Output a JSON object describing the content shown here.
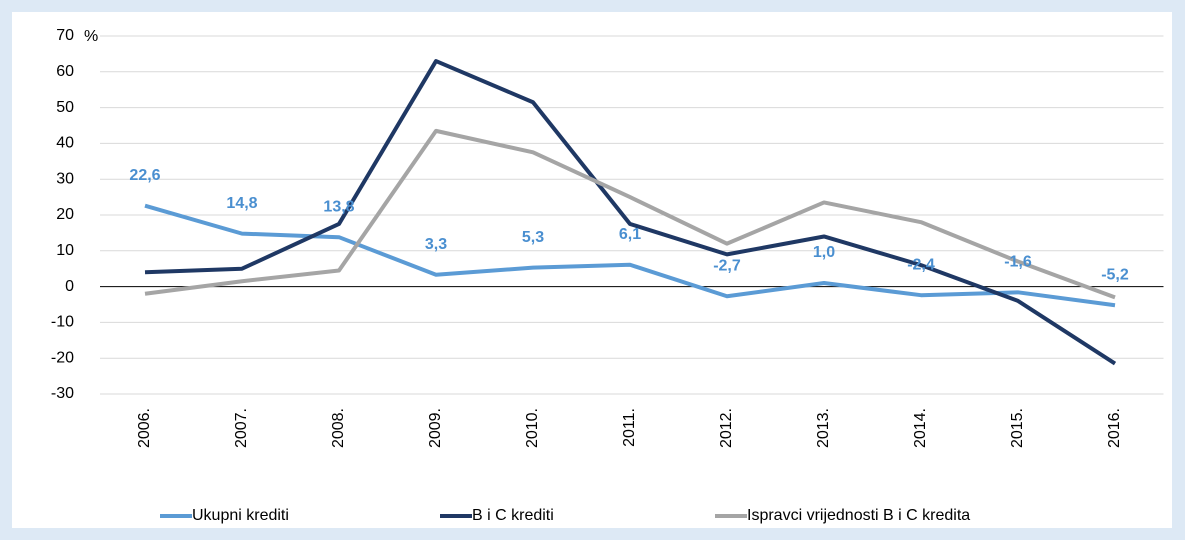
{
  "chart_data": {
    "type": "line",
    "y_unit": "%",
    "categories": [
      "2006.",
      "2007.",
      "2008.",
      "2009.",
      "2010.",
      "2011.",
      "2012.",
      "2013.",
      "2014.",
      "2015.",
      "2016."
    ],
    "series": [
      {
        "name": "Ukupni krediti",
        "color": "#5b9bd5",
        "values": [
          22.6,
          14.8,
          13.8,
          3.3,
          5.3,
          6.1,
          -2.7,
          1.0,
          -2.4,
          -1.6,
          -5.2
        ],
        "value_labels": [
          "22,6",
          "14,8",
          "13,8",
          "3,3",
          "5,3",
          "6,1",
          "-2,7",
          "1,0",
          "-2,4",
          "-1,6",
          "-5,2"
        ]
      },
      {
        "name": "B i C krediti",
        "color": "#1f3864",
        "values": [
          4,
          5,
          17.5,
          63,
          51.5,
          17.5,
          9,
          14,
          6,
          -4,
          -21.5
        ]
      },
      {
        "name": "Ispravci vrijednosti B i C kredita",
        "color": "#a5a5a5",
        "values": [
          -2,
          1.5,
          4.5,
          43.5,
          37.5,
          25,
          12,
          23.5,
          18,
          7,
          -3
        ]
      }
    ],
    "ylim": [
      -30,
      70
    ],
    "yticks": [
      -30,
      -20,
      -10,
      0,
      10,
      20,
      30,
      40,
      50,
      60,
      70
    ],
    "grid": true
  }
}
